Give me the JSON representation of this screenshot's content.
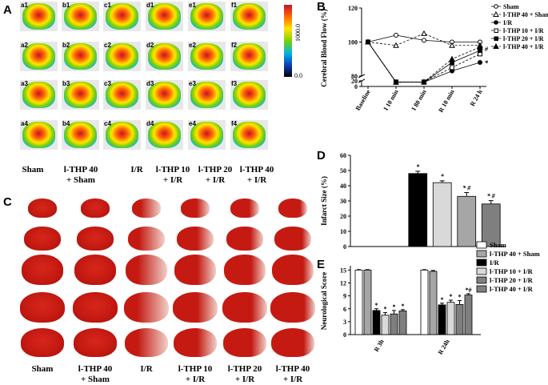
{
  "panels": {
    "a": "A",
    "b": "B",
    "c": "C",
    "d": "D",
    "e": "E"
  },
  "group_labels_a": [
    [
      "Sham",
      ""
    ],
    [
      "l-THP 40",
      "+ Sham"
    ],
    [
      "I/R",
      ""
    ],
    [
      "l-THP 10",
      "+ I/R"
    ],
    [
      "l-THP 20",
      "+ I/R"
    ],
    [
      "l-THP 40",
      "+ I/R"
    ]
  ],
  "group_labels_c": [
    [
      "Sham",
      ""
    ],
    [
      "l-THP 40",
      "+ Sham"
    ],
    [
      "I/R",
      ""
    ],
    [
      "l-THP 10",
      "+ I/R"
    ],
    [
      "l-THP 20",
      "+ I/R"
    ],
    [
      "l-THP 40",
      "+ I/R"
    ]
  ],
  "laser_tags": [
    [
      "a1",
      "b1",
      "c1",
      "d1",
      "e1",
      "f1"
    ],
    [
      "a2",
      "b2",
      "c2",
      "d2",
      "e2",
      "f2"
    ],
    [
      "a3",
      "b3",
      "c3",
      "d3",
      "e3",
      "f3"
    ],
    [
      "a4",
      "b4",
      "c4",
      "d4",
      "e4",
      "f4"
    ]
  ],
  "colorbar_labels": {
    "top": "1000.0",
    "bottom": "0.0"
  },
  "colors": {
    "black": "#000000",
    "light": "#d9d9d9",
    "mid": "#a6a6a6",
    "dark": "#7f7f7f",
    "white": "#ffffff",
    "panelbg": "#e8e8e8"
  },
  "chart_data": [
    {
      "id": "B",
      "type": "line",
      "ylabel": "Cerebral Blood Flow (%)",
      "categories": [
        "Baseline",
        "I 10 min",
        "I 80 min",
        "R 10 min",
        "R 24 h"
      ],
      "yticks": [
        0,
        20,
        80,
        100,
        120
      ],
      "series": [
        {
          "name": "Sham",
          "marker": "open-circle",
          "values": [
            100,
            104,
            101,
            100,
            100
          ]
        },
        {
          "name": "l-THP 40 + Sham",
          "marker": "open-triangle",
          "values": [
            100,
            98,
            105,
            98,
            98
          ]
        },
        {
          "name": "I/R",
          "marker": "filled-circle",
          "values": [
            100,
            15,
            15,
            83,
            88
          ]
        },
        {
          "name": "l-THP 10 + I/R",
          "marker": "open-square",
          "values": [
            100,
            15,
            16,
            85,
            93
          ]
        },
        {
          "name": "l-THP 20 + I/R",
          "marker": "filled-square",
          "values": [
            100,
            16,
            15,
            88,
            95
          ]
        },
        {
          "name": "l-THP 40 + I/R",
          "marker": "filled-triangle",
          "values": [
            100,
            15,
            16,
            90,
            97
          ]
        }
      ],
      "annotations": [
        "#",
        "*"
      ]
    },
    {
      "id": "D",
      "type": "bar",
      "ylabel": "Infarct Size (%)",
      "categories": [
        "Sham",
        "l-THP 40 + Sham",
        "I/R",
        "l-THP 10 + I/R",
        "l-THP 20 + I/R",
        "l-THP 40 + I/R"
      ],
      "values": [
        0,
        0,
        48,
        42,
        33,
        28
      ],
      "errors": [
        0,
        0,
        1.5,
        1.2,
        2.5,
        2.2
      ],
      "marks": [
        "",
        "",
        "*",
        "*",
        "* #",
        "* #"
      ],
      "yticks": [
        0,
        10,
        20,
        30,
        40,
        50,
        60
      ],
      "ylim": [
        0,
        60
      ]
    },
    {
      "id": "E",
      "type": "bar",
      "ylabel": "Neurological Score",
      "categories": [
        "R 3h",
        "R 24h"
      ],
      "series": [
        {
          "name": "Sham",
          "values": [
            15,
            15
          ],
          "errors": [
            0.1,
            0.1
          ],
          "marks": [
            "",
            ""
          ]
        },
        {
          "name": "l-THP 40 + Sham",
          "values": [
            15,
            14.7
          ],
          "errors": [
            0.1,
            0.2
          ],
          "marks": [
            "",
            ""
          ]
        },
        {
          "name": "I/R",
          "values": [
            5.6,
            6.9
          ],
          "errors": [
            0.4,
            0.4
          ],
          "marks": [
            "*",
            "*"
          ]
        },
        {
          "name": "l-THP 10 + I/R",
          "values": [
            4.5,
            7.5
          ],
          "errors": [
            0.6,
            0.5
          ],
          "marks": [
            "*",
            "*"
          ]
        },
        {
          "name": "l-THP 20 + I/R",
          "values": [
            4.8,
            7.0
          ],
          "errors": [
            0.8,
            0.9
          ],
          "marks": [
            "*",
            "*"
          ]
        },
        {
          "name": "l-THP 40 + I/R",
          "values": [
            5.5,
            9.2
          ],
          "errors": [
            0.3,
            0.3
          ],
          "marks": [
            "*",
            "*#"
          ]
        }
      ],
      "yticks": [
        0,
        3,
        6,
        9,
        12,
        15
      ],
      "ylim": [
        0,
        16
      ]
    }
  ]
}
